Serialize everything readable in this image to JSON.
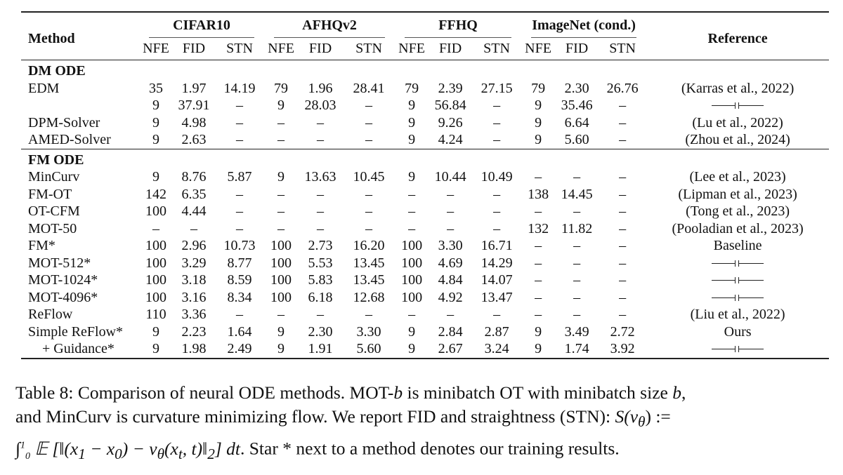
{
  "table": {
    "method_header": "Method",
    "reference_header": "Reference",
    "groups": [
      "CIFAR10",
      "AFHQv2",
      "FFHQ",
      "ImageNet (cond.)"
    ],
    "subheaders": [
      "NFE",
      "FID",
      "STN"
    ],
    "dash": "–",
    "sections": [
      {
        "title": "DM ODE",
        "rows": [
          {
            "method": "EDM",
            "cells": [
              "35",
              "1.97",
              "14.19",
              "79",
              "1.96",
              "28.41",
              "79",
              "2.39",
              "27.15",
              "79",
              "2.30",
              "26.76"
            ],
            "ref": "(Karras et al., 2022)"
          },
          {
            "method": "",
            "cells": [
              "9",
              "37.91",
              "–",
              "9",
              "28.03",
              "–",
              "9",
              "56.84",
              "–",
              "9",
              "35.46",
              "–"
            ],
            "ref": "ditto"
          },
          {
            "method": "DPM-Solver",
            "cells": [
              "9",
              "4.98",
              "–",
              "–",
              "–",
              "–",
              "9",
              "9.26",
              "–",
              "9",
              "6.64",
              "–"
            ],
            "ref": "(Lu et al., 2022)"
          },
          {
            "method": "AMED-Solver",
            "cells": [
              "9",
              "2.63",
              "–",
              "–",
              "–",
              "–",
              "9",
              "4.24",
              "–",
              "9",
              "5.60",
              "–"
            ],
            "ref": "(Zhou et al., 2024)"
          }
        ]
      },
      {
        "title": "FM ODE",
        "rows": [
          {
            "method": "MinCurv",
            "cells": [
              "9",
              "8.76",
              "5.87",
              "9",
              "13.63",
              "10.45",
              "9",
              "10.44",
              "10.49",
              "–",
              "–",
              "–"
            ],
            "ref": "(Lee et al., 2023)"
          },
          {
            "method": "FM-OT",
            "cells": [
              "142",
              "6.35",
              "–",
              "–",
              "–",
              "–",
              "–",
              "–",
              "–",
              "138",
              "14.45",
              "–"
            ],
            "ref": "(Lipman et al., 2023)"
          },
          {
            "method": "OT-CFM",
            "cells": [
              "100",
              "4.44",
              "–",
              "–",
              "–",
              "–",
              "–",
              "–",
              "–",
              "–",
              "–",
              "–"
            ],
            "ref": "(Tong et al., 2023)"
          },
          {
            "method": "MOT-50",
            "cells": [
              "–",
              "–",
              "–",
              "–",
              "–",
              "–",
              "–",
              "–",
              "–",
              "132",
              "11.82",
              "–"
            ],
            "ref": "(Pooladian et al., 2023)"
          },
          {
            "method": "FM*",
            "cells": [
              "100",
              "2.96",
              "10.73",
              "100",
              "2.73",
              "16.20",
              "100",
              "3.30",
              "16.71",
              "–",
              "–",
              "–"
            ],
            "ref": "Baseline"
          },
          {
            "method": "MOT-512*",
            "cells": [
              "100",
              "3.29",
              "8.77",
              "100",
              "5.53",
              "13.45",
              "100",
              "4.69",
              "14.29",
              "–",
              "–",
              "–"
            ],
            "ref": "ditto"
          },
          {
            "method": "MOT-1024*",
            "cells": [
              "100",
              "3.18",
              "8.59",
              "100",
              "5.83",
              "13.45",
              "100",
              "4.84",
              "14.07",
              "–",
              "–",
              "–"
            ],
            "ref": "ditto"
          },
          {
            "method": "MOT-4096*",
            "cells": [
              "100",
              "3.16",
              "8.34",
              "100",
              "6.18",
              "12.68",
              "100",
              "4.92",
              "13.47",
              "–",
              "–",
              "–"
            ],
            "ref": "ditto"
          },
          {
            "method": "ReFlow",
            "cells": [
              "110",
              "3.36",
              "–",
              "–",
              "–",
              "–",
              "–",
              "–",
              "–",
              "–",
              "–",
              "–"
            ],
            "ref": "(Liu et al., 2022)"
          },
          {
            "method": "Simple ReFlow*",
            "cells": [
              "9",
              "2.23",
              "1.64",
              "9",
              "2.30",
              "3.30",
              "9",
              "2.84",
              "2.87",
              "9",
              "3.49",
              "2.72"
            ],
            "ref": "Ours"
          },
          {
            "method": "+ Guidance*",
            "indent": true,
            "cells": [
              "9",
              "1.98",
              "2.49",
              "9",
              "1.91",
              "5.60",
              "9",
              "2.67",
              "3.24",
              "9",
              "1.74",
              "3.92"
            ],
            "ref": "ditto"
          }
        ]
      }
    ]
  },
  "caption": {
    "line1_a": "Table 8: Comparison of neural ODE methods. MOT-",
    "line1_b": "b",
    "line1_c": " is minibatch OT with minibatch size ",
    "line1_d": "b",
    "line1_e": ",",
    "line2_a": "and MinCurv is curvature minimizing flow. We report FID and straightness (STN): ",
    "line2_formula": "S(v",
    "line2_sub": "θ",
    "line2_tail": ") :=",
    "line3_formula_a": "∫",
    "line3_sup": "1",
    "line3_sub": "0",
    "line3_formula_b": " 𝔼 [‖(x",
    "line3_formula_c": "1",
    "line3_formula_d": " − x",
    "line3_formula_e": "0",
    "line3_formula_f": ") − v",
    "line3_formula_g": "θ",
    "line3_formula_h": "(x",
    "line3_formula_i": "t",
    "line3_formula_j": ", t)‖",
    "line3_formula_k": "2",
    "line3_formula_l": "] dt",
    "line3_text": ". Star * next to a method denotes our training results."
  }
}
